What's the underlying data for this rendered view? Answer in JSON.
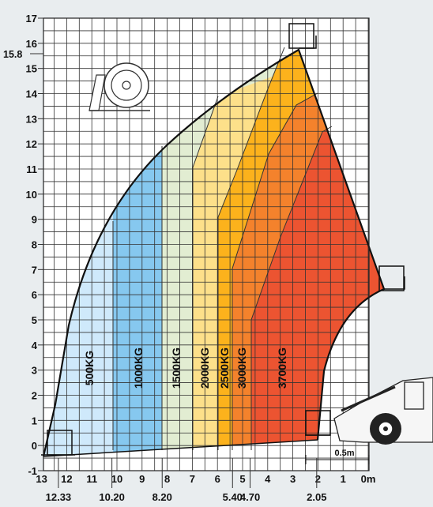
{
  "chart_data": {
    "type": "load-chart",
    "y_ticks": [
      "-1",
      "0",
      "1",
      "2",
      "3",
      "4",
      "5",
      "6",
      "7",
      "8",
      "9",
      "10",
      "11",
      "12",
      "13",
      "14",
      "15",
      "16",
      "17"
    ],
    "y_extra_label": "15.8",
    "x_ticks": [
      "13",
      "12",
      "11",
      "10",
      "9",
      "8",
      "7",
      "6",
      "5",
      "4",
      "3",
      "2",
      "1",
      "0m"
    ],
    "x_extra_labels": [
      "12.33",
      "10.20",
      "8.20",
      "5.40",
      "4.70",
      "2.05"
    ],
    "scale_note": "0.5m",
    "zones": [
      {
        "label": "500KG",
        "color": "#cfe9fb"
      },
      {
        "label": "1000KG",
        "color": "#86c8ef"
      },
      {
        "label": "1500KG",
        "color": "#e2edd2"
      },
      {
        "label": "2000KG",
        "color": "#fde08a"
      },
      {
        "label": "2500KG",
        "color": "#fcb21c"
      },
      {
        "label": "3000KG",
        "color": "#f4822c"
      },
      {
        "label": "3700KG",
        "color": "#ec5431"
      }
    ],
    "max_height_m": 15.8,
    "max_reach_m": 12.33,
    "grid": true
  }
}
